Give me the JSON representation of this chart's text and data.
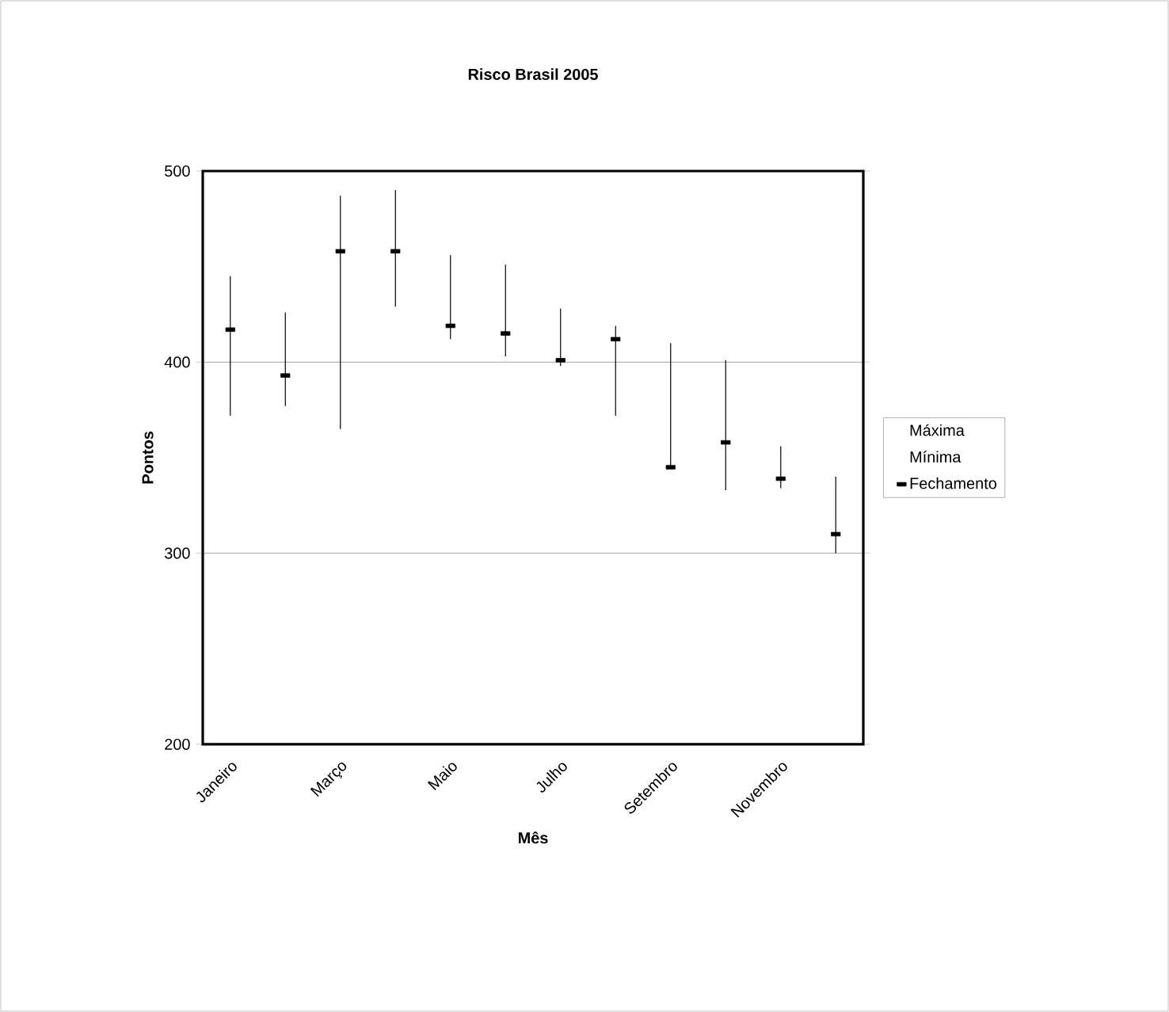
{
  "chart_data": {
    "type": "scatter",
    "title": "Risco Brasil 2005",
    "xlabel": "Mês",
    "ylabel": "Pontos",
    "categories": [
      "Janeiro",
      null,
      "Março",
      null,
      "Maio",
      null,
      "Julho",
      null,
      "Setembro",
      null,
      "Novembro",
      null
    ],
    "series": [
      {
        "name": "Fechamento",
        "color": "#000000",
        "marker": "square",
        "values": [
          417,
          393,
          458,
          458,
          419,
          415,
          401,
          412,
          345,
          358,
          339,
          310
        ],
        "errors": [
          [
            372,
            445
          ],
          [
            377,
            426
          ],
          [
            365,
            487
          ],
          [
            429,
            490
          ],
          [
            412,
            456
          ],
          [
            403,
            451
          ],
          [
            398,
            428
          ],
          [
            372,
            419
          ],
          [
            344,
            410
          ],
          [
            333,
            401
          ],
          [
            334,
            356
          ],
          [
            300,
            340
          ]
        ]
      }
    ],
    "annotations": [
      "Máxima",
      "Mínima"
    ],
    "ylim": [
      200,
      500
    ],
    "yticks": [
      200,
      300,
      400,
      500
    ],
    "grid": "y",
    "legend": "right"
  }
}
